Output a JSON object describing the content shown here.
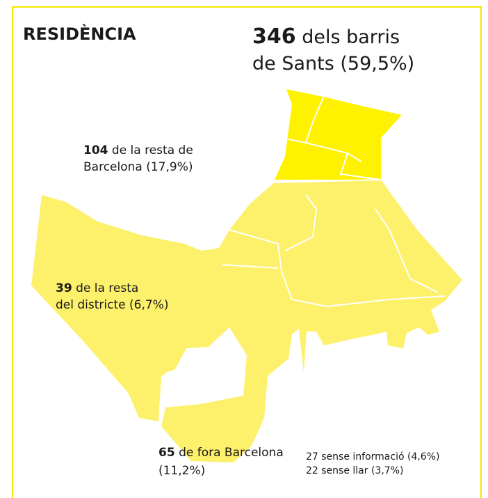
{
  "title": "RESIDÈNCIA",
  "groups": [
    {
      "count": "346",
      "lines": [
        "dels barris",
        "de Sants (59,5%)"
      ]
    },
    {
      "count": "104",
      "lines": [
        "de la resta de",
        "Barcelona (17,9%)"
      ]
    },
    {
      "count": "39",
      "lines": [
        "de la resta",
        "del districte (6,7%)"
      ]
    },
    {
      "count": "65",
      "lines": [
        "de fora Barcelona",
        "(11,2%)"
      ]
    }
  ],
  "notes": [
    "27 sense informació (4,6%)",
    "22 sense llar (3,7%)"
  ]
}
